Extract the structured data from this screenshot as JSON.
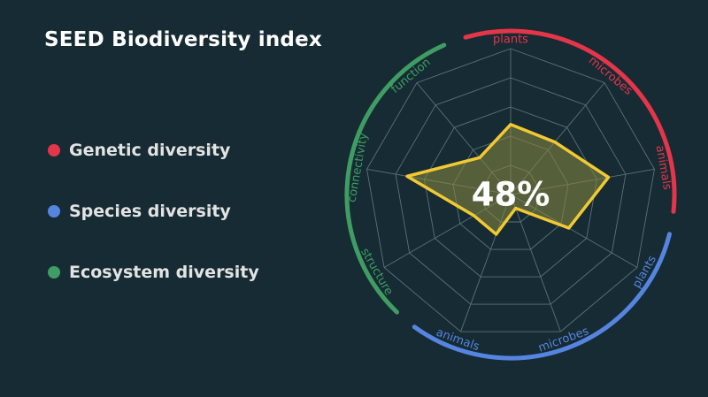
{
  "title": "SEED Biodiversity index",
  "legend": [
    {
      "label": "Genetic diversity",
      "color": "#e5354a"
    },
    {
      "label": "Species diversity",
      "color": "#5685e1"
    },
    {
      "label": "Ecosystem diversity",
      "color": "#3f9d63"
    }
  ],
  "chart_data": {
    "type": "radar",
    "center_label": "48%",
    "scale_max": 5,
    "rings": 5,
    "axes": [
      {
        "label": "plants",
        "group": "Genetic diversity",
        "color": "#e5354a",
        "value": 2.4
      },
      {
        "label": "microbes",
        "group": "Genetic diversity",
        "color": "#e5354a",
        "value": 2.35
      },
      {
        "label": "animals",
        "group": "Genetic diversity",
        "color": "#e5354a",
        "value": 3.4
      },
      {
        "label": "plants",
        "group": "Species diversity",
        "color": "#5685e1",
        "value": 2.3
      },
      {
        "label": "microbes",
        "group": "Species diversity",
        "color": "#5685e1",
        "value": 0.5
      },
      {
        "label": "animals",
        "group": "Species diversity",
        "color": "#5685e1",
        "value": 1.45
      },
      {
        "label": "structure",
        "group": "Ecosystem diversity",
        "color": "#3f9d63",
        "value": 1.45
      },
      {
        "label": "connectivity",
        "group": "Ecosystem diversity",
        "color": "#3f9d63",
        "value": 3.6
      },
      {
        "label": "function",
        "group": "Ecosystem diversity",
        "color": "#3f9d63",
        "value": 1.65
      }
    ],
    "groups": [
      {
        "name": "Genetic diversity",
        "color": "#e5354a"
      },
      {
        "name": "Species diversity",
        "color": "#5685e1"
      },
      {
        "name": "Ecosystem diversity",
        "color": "#3f9d63"
      }
    ],
    "series_color": "#f2c933",
    "fill_color": "#8a8a3e"
  }
}
